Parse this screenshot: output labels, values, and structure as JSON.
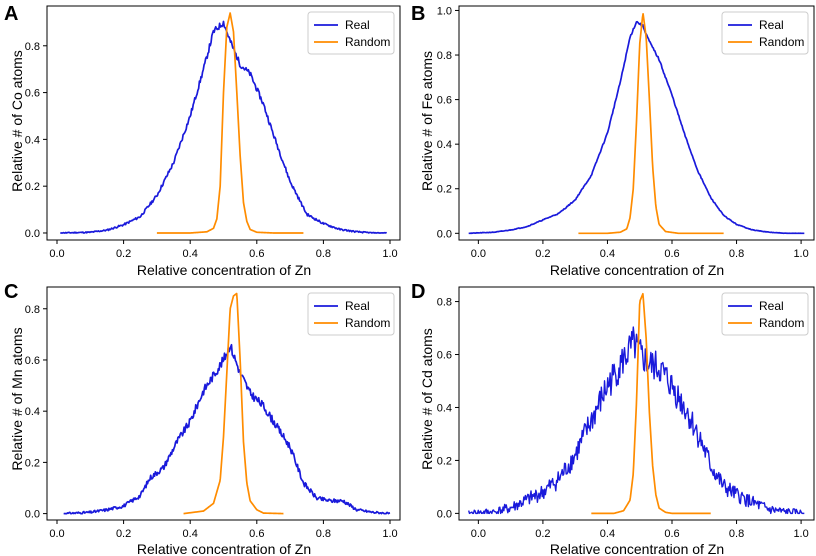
{
  "colors": {
    "real": "#1a1adb",
    "random": "#ff8c00"
  },
  "chart_data": [
    {
      "panel": "A",
      "type": "line",
      "xlabel": "Relative concentration of Zn",
      "ylabel": "Relative # of Co atoms",
      "xlim": [
        -0.03,
        1.03
      ],
      "ylim": [
        -0.03,
        0.97
      ],
      "xticks": [
        0.0,
        0.2,
        0.4,
        0.6,
        0.8,
        1.0
      ],
      "xtick_labels": [
        "0.0",
        "0.2",
        "0.4",
        "0.6",
        "0.8",
        "1.0"
      ],
      "yticks": [
        0.0,
        0.2,
        0.4,
        0.6,
        0.8
      ],
      "ytick_labels": [
        "0.0",
        "0.2",
        "0.4",
        "0.6",
        "0.8"
      ],
      "legend": [
        "Real",
        "Random"
      ],
      "legend_loc": "top-right",
      "series": [
        {
          "name": "Real",
          "noise": 0.008,
          "seed": 11,
          "x": [
            0.01,
            0.1,
            0.15,
            0.2,
            0.25,
            0.3,
            0.35,
            0.4,
            0.44,
            0.47,
            0.5,
            0.52,
            0.55,
            0.58,
            0.62,
            0.65,
            0.7,
            0.75,
            0.8,
            0.85,
            0.9,
            0.95,
            0.99
          ],
          "y": [
            0.0,
            0.003,
            0.012,
            0.035,
            0.07,
            0.16,
            0.3,
            0.5,
            0.7,
            0.86,
            0.9,
            0.82,
            0.72,
            0.68,
            0.55,
            0.42,
            0.22,
            0.08,
            0.04,
            0.015,
            0.005,
            0.0,
            0.0
          ]
        },
        {
          "name": "Random",
          "noise": 0,
          "seed": 0,
          "x": [
            0.3,
            0.4,
            0.45,
            0.47,
            0.48,
            0.49,
            0.5,
            0.51,
            0.52,
            0.53,
            0.54,
            0.55,
            0.56,
            0.57,
            0.58,
            0.6,
            0.65,
            0.74
          ],
          "y": [
            0,
            0,
            0.005,
            0.02,
            0.06,
            0.2,
            0.6,
            0.88,
            0.94,
            0.86,
            0.6,
            0.33,
            0.13,
            0.05,
            0.015,
            0.003,
            0,
            0
          ]
        }
      ]
    },
    {
      "panel": "B",
      "type": "line",
      "xlabel": "Relative concentration of Zn",
      "ylabel": "Relative # of Fe atoms",
      "xlim": [
        -0.06,
        1.04
      ],
      "ylim": [
        -0.03,
        1.02
      ],
      "xticks": [
        0.0,
        0.2,
        0.4,
        0.6,
        0.8,
        1.0
      ],
      "xtick_labels": [
        "0.0",
        "0.2",
        "0.4",
        "0.6",
        "0.8",
        "1.0"
      ],
      "yticks": [
        0.0,
        0.2,
        0.4,
        0.6,
        0.8,
        1.0
      ],
      "ytick_labels": [
        "0.0",
        "0.2",
        "0.4",
        "0.6",
        "0.8",
        "1.0"
      ],
      "legend": [
        "Real",
        "Random"
      ],
      "legend_loc": "top-right",
      "series": [
        {
          "name": "Real",
          "noise": 0.003,
          "seed": 21,
          "x": [
            -0.03,
            0.05,
            0.1,
            0.15,
            0.2,
            0.25,
            0.3,
            0.35,
            0.4,
            0.44,
            0.47,
            0.49,
            0.51,
            0.53,
            0.56,
            0.6,
            0.64,
            0.68,
            0.72,
            0.76,
            0.8,
            0.85,
            0.9,
            0.95,
            1.01
          ],
          "y": [
            0.0,
            0.005,
            0.015,
            0.03,
            0.06,
            0.09,
            0.15,
            0.26,
            0.45,
            0.68,
            0.88,
            0.95,
            0.93,
            0.86,
            0.78,
            0.62,
            0.44,
            0.28,
            0.16,
            0.08,
            0.04,
            0.015,
            0.005,
            0.0,
            0.0
          ]
        },
        {
          "name": "Random",
          "noise": 0,
          "seed": 0,
          "x": [
            0.31,
            0.4,
            0.44,
            0.46,
            0.47,
            0.48,
            0.49,
            0.5,
            0.51,
            0.52,
            0.53,
            0.54,
            0.55,
            0.56,
            0.58,
            0.62,
            0.76
          ],
          "y": [
            0,
            0,
            0.005,
            0.02,
            0.07,
            0.2,
            0.5,
            0.85,
            0.99,
            0.88,
            0.6,
            0.3,
            0.12,
            0.04,
            0.008,
            0,
            0
          ]
        }
      ]
    },
    {
      "panel": "C",
      "type": "line",
      "xlabel": "Relative concentration of Zn",
      "ylabel": "Relative # of Mn atoms",
      "xlim": [
        -0.03,
        1.03
      ],
      "ylim": [
        -0.025,
        0.885
      ],
      "xticks": [
        0.0,
        0.2,
        0.4,
        0.6,
        0.8,
        1.0
      ],
      "xtick_labels": [
        "0.0",
        "0.2",
        "0.4",
        "0.6",
        "0.8",
        "1.0"
      ],
      "yticks": [
        0.0,
        0.2,
        0.4,
        0.6,
        0.8
      ],
      "ytick_labels": [
        "0.0",
        "0.2",
        "0.4",
        "0.6",
        "0.8"
      ],
      "legend": [
        "Real",
        "Random"
      ],
      "legend_loc": "top-right",
      "series": [
        {
          "name": "Real",
          "noise": 0.013,
          "seed": 31,
          "x": [
            0.02,
            0.1,
            0.15,
            0.2,
            0.25,
            0.28,
            0.32,
            0.36,
            0.4,
            0.44,
            0.48,
            0.5,
            0.52,
            0.53,
            0.55,
            0.58,
            0.62,
            0.66,
            0.7,
            0.74,
            0.78,
            0.82,
            0.86,
            0.9,
            0.95,
            1.0
          ],
          "y": [
            0.0,
            0.005,
            0.015,
            0.03,
            0.07,
            0.14,
            0.18,
            0.28,
            0.36,
            0.48,
            0.56,
            0.6,
            0.66,
            0.62,
            0.55,
            0.47,
            0.42,
            0.34,
            0.26,
            0.12,
            0.06,
            0.05,
            0.05,
            0.015,
            0.005,
            0.0
          ]
        },
        {
          "name": "Random",
          "noise": 0,
          "seed": 0,
          "x": [
            0.38,
            0.44,
            0.47,
            0.49,
            0.5,
            0.51,
            0.52,
            0.53,
            0.54,
            0.55,
            0.56,
            0.57,
            0.58,
            0.6,
            0.62,
            0.68
          ],
          "y": [
            0,
            0.01,
            0.04,
            0.13,
            0.3,
            0.55,
            0.8,
            0.85,
            0.86,
            0.6,
            0.28,
            0.12,
            0.05,
            0.015,
            0.002,
            0
          ]
        }
      ]
    },
    {
      "panel": "D",
      "type": "line",
      "xlabel": "Relative concentration of Zn",
      "ylabel": "Relative # of Cd atoms",
      "xlim": [
        -0.06,
        1.04
      ],
      "ylim": [
        -0.025,
        0.855
      ],
      "xticks": [
        0.0,
        0.2,
        0.4,
        0.6,
        0.8,
        1.0
      ],
      "xtick_labels": [
        "0.0",
        "0.2",
        "0.4",
        "0.6",
        "0.8",
        "1.0"
      ],
      "yticks": [
        0.0,
        0.2,
        0.4,
        0.6,
        0.8
      ],
      "ytick_labels": [
        "0.0",
        "0.2",
        "0.4",
        "0.6",
        "0.8"
      ],
      "legend": [
        "Real",
        "Random"
      ],
      "legend_loc": "top-right",
      "series": [
        {
          "name": "Real",
          "noise": 0.045,
          "seed": 41,
          "x": [
            -0.03,
            0.05,
            0.1,
            0.15,
            0.2,
            0.25,
            0.3,
            0.35,
            0.4,
            0.44,
            0.48,
            0.5,
            0.53,
            0.56,
            0.6,
            0.64,
            0.68,
            0.72,
            0.76,
            0.8,
            0.85,
            0.9,
            0.95,
            1.01
          ],
          "y": [
            0.0,
            0.005,
            0.02,
            0.05,
            0.08,
            0.13,
            0.22,
            0.35,
            0.48,
            0.56,
            0.64,
            0.6,
            0.56,
            0.55,
            0.48,
            0.4,
            0.3,
            0.18,
            0.1,
            0.07,
            0.04,
            0.015,
            0.005,
            0.0
          ]
        },
        {
          "name": "Random",
          "noise": 0,
          "seed": 0,
          "x": [
            0.35,
            0.42,
            0.45,
            0.47,
            0.48,
            0.49,
            0.5,
            0.51,
            0.52,
            0.53,
            0.54,
            0.55,
            0.56,
            0.58,
            0.6,
            0.72
          ],
          "y": [
            0,
            0,
            0.01,
            0.05,
            0.15,
            0.42,
            0.8,
            0.83,
            0.66,
            0.38,
            0.18,
            0.07,
            0.02,
            0.004,
            0,
            0
          ]
        }
      ]
    }
  ]
}
